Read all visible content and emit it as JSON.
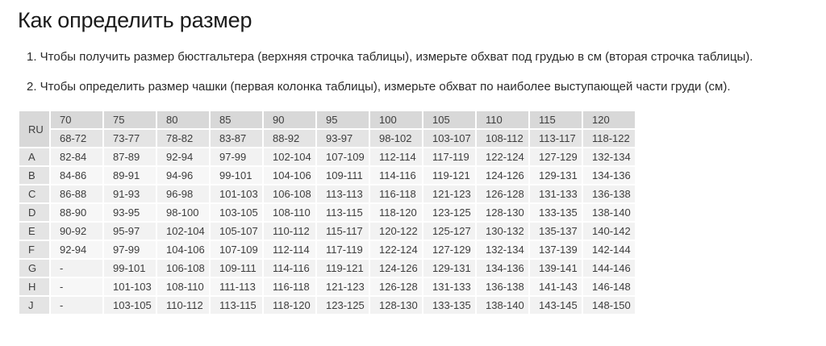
{
  "page": {
    "title": "Как определить размер",
    "instructions": [
      "1. Чтобы получить размер бюстгальтера (верхняя строчка таблицы), измерьте обхват под грудью в см (вторая строчка таблицы).",
      "2. Чтобы определить размер чашки (первая колонка таблицы), измерьте обхват по наиболее выступающей части груди (см)."
    ]
  },
  "size_table": {
    "corner_label": "RU",
    "band_sizes": [
      "70",
      "75",
      "80",
      "85",
      "90",
      "95",
      "100",
      "105",
      "110",
      "115",
      "120"
    ],
    "underbust_ranges": [
      "68-72",
      "73-77",
      "78-82",
      "83-87",
      "88-92",
      "93-97",
      "98-102",
      "103-107",
      "108-112",
      "113-117",
      "118-122"
    ],
    "cup_rows": [
      {
        "cup": "A",
        "values": [
          "82-84",
          "87-89",
          "92-94",
          "97-99",
          "102-104",
          "107-109",
          "112-114",
          "117-119",
          "122-124",
          "127-129",
          "132-134"
        ]
      },
      {
        "cup": "B",
        "values": [
          "84-86",
          "89-91",
          "94-96",
          "99-101",
          "104-106",
          "109-111",
          "114-116",
          "119-121",
          "124-126",
          "129-131",
          "134-136"
        ]
      },
      {
        "cup": "C",
        "values": [
          "86-88",
          "91-93",
          "96-98",
          "101-103",
          "106-108",
          "113-113",
          "116-118",
          "121-123",
          "126-128",
          "131-133",
          "136-138"
        ]
      },
      {
        "cup": "D",
        "values": [
          "88-90",
          "93-95",
          "98-100",
          "103-105",
          "108-110",
          "113-115",
          "118-120",
          "123-125",
          "128-130",
          "133-135",
          "138-140"
        ]
      },
      {
        "cup": "E",
        "values": [
          "90-92",
          "95-97",
          "102-104",
          "105-107",
          "110-112",
          "115-117",
          "120-122",
          "125-127",
          "130-132",
          "135-137",
          "140-142"
        ]
      },
      {
        "cup": "F",
        "values": [
          "92-94",
          "97-99",
          "104-106",
          "107-109",
          "112-114",
          "117-119",
          "122-124",
          "127-129",
          "132-134",
          "137-139",
          "142-144"
        ]
      },
      {
        "cup": "G",
        "values": [
          "-",
          "99-101",
          "106-108",
          "109-111",
          "114-116",
          "119-121",
          "124-126",
          "129-131",
          "134-136",
          "139-141",
          "144-146"
        ]
      },
      {
        "cup": "H",
        "values": [
          "-",
          "101-103",
          "108-110",
          "111-113",
          "116-118",
          "121-123",
          "126-128",
          "131-133",
          "136-138",
          "141-143",
          "146-148"
        ]
      },
      {
        "cup": "J",
        "values": [
          "-",
          "103-105",
          "110-112",
          "113-115",
          "118-120",
          "123-125",
          "128-130",
          "133-135",
          "138-140",
          "143-145",
          "148-150"
        ]
      }
    ]
  },
  "colors": {
    "header_dark": "#d8d8d8",
    "header_light": "#e4e4e4",
    "label_bg": "#e4e4e4",
    "cell_odd": "#f2f2f2",
    "cell_even": "#f7f7f7",
    "text_dark": "#3d3d3d"
  }
}
